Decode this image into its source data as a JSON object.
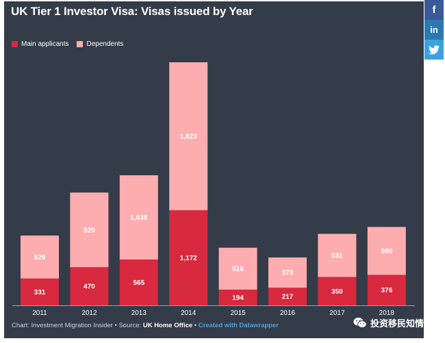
{
  "header": {
    "title": "UK Tier 1 Investor Visa: Visas issued by Year"
  },
  "share": {
    "facebook_label": "f",
    "linkedin_label": "in",
    "twitter_icon": "twitter-bird-icon"
  },
  "footer": {
    "credit": "Chart: Investment Migration Insider • Source: ",
    "source": "UK Home Office",
    "separator": " • ",
    "link": "Created with Datawrapper"
  },
  "watermark": {
    "icon": "wechat-icon",
    "text": "投资移民知情者"
  },
  "colors": {
    "background": "#343c49",
    "main_applicants": "#d8293e",
    "dependents": "#fdadaf"
  },
  "chart_data": {
    "type": "bar",
    "stacked": true,
    "title": "UK Tier 1 Investor Visa: Visas issued by Year",
    "categories": [
      "2011",
      "2012",
      "2013",
      "2014",
      "2015",
      "2016",
      "2017",
      "2018"
    ],
    "series": [
      {
        "name": "Main applicants",
        "values": [
          331,
          470,
          565,
          1172,
          194,
          217,
          350,
          376
        ]
      },
      {
        "name": "Dependents",
        "values": [
          529,
          920,
          1038,
          1823,
          516,
          373,
          531,
          590
        ]
      }
    ],
    "value_labels": [
      [
        "331",
        "470",
        "565",
        "1,172",
        "194",
        "217",
        "350",
        "376"
      ],
      [
        "529",
        "920",
        "1,038",
        "1,823",
        "516",
        "373",
        "531",
        "590"
      ]
    ],
    "legend_position": "top-left",
    "grid": false,
    "xlabel": "",
    "ylabel": ""
  }
}
